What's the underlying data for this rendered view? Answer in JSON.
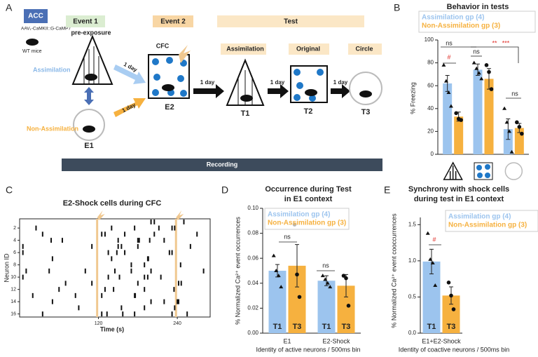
{
  "panel_labels": [
    "A",
    "B",
    "C",
    "D",
    "E"
  ],
  "diagram": {
    "acc": "ACC",
    "virus": "AAV₁-CaMKII::G-CaMP7",
    "mice": "WT mice",
    "event1": "Event 1",
    "event2": "Event 2",
    "test": "Test",
    "pre_exposure": "pre-exposure",
    "cfc": "CFC",
    "assimilation_group": "Assimilation",
    "non_assimilation_group": "Non-Assimilation",
    "test_boxes": [
      "Assimilation",
      "Original",
      "Circle"
    ],
    "day": "1 day",
    "stages": [
      "E1",
      "E2",
      "T1",
      "T2",
      "T3"
    ],
    "recording": "Recording"
  },
  "chart_data": [
    {
      "type": "bar",
      "title": [
        "Behavior in tests"
      ],
      "ylabel": "% Freezing",
      "categories": [
        null,
        null,
        null
      ],
      "ylim": [
        0,
        100
      ],
      "yticks": [
        0,
        20,
        40,
        60,
        80,
        100
      ],
      "series": [
        {
          "name": "Assimilation gp (4)",
          "color": "#9cc4ee",
          "values": [
            62,
            74,
            22
          ],
          "errors": [
            7,
            5,
            9
          ],
          "points": [
            [
              78,
              64,
              54,
              42
            ],
            [
              80,
              75,
              71,
              66
            ],
            [
              40,
              28,
              20,
              2
            ]
          ]
        },
        {
          "name": "Non-Assimilation gp (3)",
          "color": "#f6b13f",
          "values": [
            33,
            66,
            23
          ],
          "errors": [
            4,
            9,
            4
          ],
          "points": [
            [
              36,
              31,
              30
            ],
            [
              78,
              72,
              57
            ],
            [
              28,
              24,
              18
            ]
          ]
        }
      ],
      "annotations": [
        {
          "text": "ns",
          "color": "#222"
        },
        {
          "text": "#",
          "color": "#e0302a"
        },
        {
          "text": "ns",
          "color": "#222"
        },
        {
          "text": "**",
          "color": "#e0302a"
        },
        {
          "text": "***",
          "color": "#e0302a"
        },
        {
          "text": "ns",
          "color": "#222"
        }
      ]
    },
    {
      "type": "raster",
      "title": [
        "E2-Shock cells during CFC"
      ],
      "ylabel": "Neuron ID",
      "xlabel": "Time (s)",
      "xlim": [
        0,
        290
      ],
      "xticks": [
        120,
        240
      ],
      "ylim": [
        0.5,
        16.5
      ],
      "yticks": [
        2,
        4,
        6,
        8,
        10,
        12,
        14,
        16
      ],
      "shocks": [
        118,
        238
      ],
      "shock_color": "#f0c890",
      "events": [
        [
          200,
          205,
          250
        ],
        [
          25,
          140,
          175,
          212,
          232,
          236
        ],
        [
          35,
          125,
          130,
          160,
          205,
          270
        ],
        [
          48,
          65,
          150,
          180,
          182,
          198,
          220
        ],
        [
          5,
          110,
          150,
          155,
          180,
          260
        ],
        [
          5,
          135,
          148,
          160,
          228,
          232
        ],
        [
          50,
          140,
          195,
          196
        ],
        [
          170,
          190,
          245
        ],
        [
          10,
          45,
          100,
          145,
          170,
          200,
          280
        ],
        [
          5,
          135,
          152,
          190,
          195,
          215
        ],
        [
          70,
          110,
          180,
          242,
          246
        ],
        [
          60,
          130,
          143,
          190,
          235
        ],
        [
          20,
          85,
          125,
          175,
          176
        ],
        [
          50,
          200,
          220,
          240,
          242
        ],
        [
          90,
          155,
          190,
          236
        ],
        [
          35,
          125,
          133,
          157,
          175,
          232,
          255
        ]
      ]
    },
    {
      "type": "bar",
      "title": [
        "Occurrence during Test",
        "in E1 context"
      ],
      "ylabel": "% Normalized Ca²⁺ event occurrences",
      "xlabel": "Identity of active neurons / 500ms bin",
      "categories": [
        "E1",
        "E2-Shock"
      ],
      "ylim": [
        0,
        0.1
      ],
      "yticks": [
        {
          "value": 0,
          "label": "0.00"
        },
        {
          "value": 0.02,
          "label": "0.02"
        },
        {
          "value": 0.04,
          "label": "0.04"
        },
        {
          "value": 0.06,
          "label": "0.06"
        },
        {
          "value": 0.08,
          "label": "0.08"
        },
        {
          "value": 0.1,
          "label": "0.10"
        }
      ],
      "series": [
        {
          "name": "Assimilation gp (4)",
          "color": "#9cc4ee",
          "label": "T1",
          "values": [
            0.05,
            0.042
          ],
          "errors": [
            0.005,
            0.004
          ],
          "points": [
            [
              0.062,
              0.05,
              0.046,
              0.037
            ],
            [
              0.046,
              0.043,
              0.04,
              0.037
            ]
          ]
        },
        {
          "name": "Non-Assimilation gp (3)",
          "color": "#f6b13f",
          "label": "T3",
          "values": [
            0.054,
            0.038
          ],
          "errors": [
            0.017,
            0.009
          ],
          "points": [
            [
              0.087,
              0.047,
              0.029
            ],
            [
              0.046,
              0.044,
              0.022
            ]
          ]
        }
      ],
      "annotations": [
        {
          "text": "ns",
          "color": "#222"
        },
        {
          "text": "ns",
          "color": "#222"
        }
      ]
    },
    {
      "type": "bar",
      "title": [
        "Synchrony with shock cells",
        "during test in E1 context"
      ],
      "ylabel": "% Normalized Ca²⁺ event cooccurrences",
      "xlabel": "Identity of coactive neurons / 500ms bin",
      "categories": [
        "E1+E2-Shock"
      ],
      "ylim": [
        0,
        1.6
      ],
      "yticks": [
        {
          "value": 0,
          "label": "0.0"
        },
        {
          "value": 0.5,
          "label": "0.5"
        },
        {
          "value": 1,
          "label": "1.0"
        },
        {
          "value": 1.5,
          "label": "1.5"
        }
      ],
      "series": [
        {
          "name": "Assimilation gp (4)",
          "color": "#9cc4ee",
          "label": "T1",
          "values": [
            0.99
          ],
          "errors": [
            0.17
          ],
          "points": [
            [
              1.38,
              1.02,
              0.97,
              0.66
            ]
          ]
        },
        {
          "name": "Non-Assimilation gp (3)",
          "color": "#f6b13f",
          "label": "T3",
          "values": [
            0.52
          ],
          "errors": [
            0.12
          ],
          "points": [
            [
              0.7,
              0.52,
              0.33
            ]
          ]
        }
      ],
      "annotations": [
        {
          "text": "#",
          "color": "#e0302a"
        }
      ]
    }
  ]
}
